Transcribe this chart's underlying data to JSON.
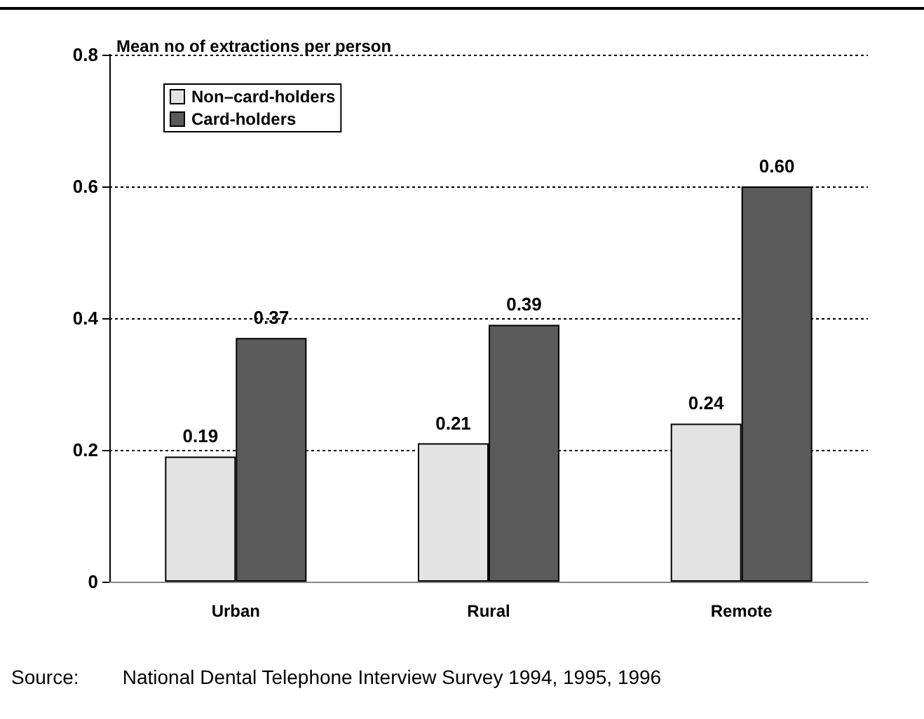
{
  "chart_data": {
    "type": "bar",
    "ylabel": "Mean no of extractions per person",
    "categories": [
      "Urban",
      "Rural",
      "Remote"
    ],
    "series": [
      {
        "name": "Non–card-holders",
        "color": "#e3e3e3",
        "values": [
          0.19,
          0.21,
          0.24
        ],
        "value_labels": [
          "0.19",
          "0.21",
          "0.24"
        ]
      },
      {
        "name": "Card-holders",
        "color": "#5a5a5a",
        "values": [
          0.37,
          0.39,
          0.6
        ],
        "value_labels": [
          "0.37",
          "0.39",
          "0.60"
        ]
      }
    ],
    "ylim": [
      0,
      0.8
    ],
    "yticks": [
      0,
      0.2,
      0.4,
      0.6,
      0.8
    ],
    "grid": "y",
    "legend": "top left",
    "annotations": [
      "Source:        National Dental Telephone Interview Survey 1994, 1995, 1996"
    ]
  }
}
